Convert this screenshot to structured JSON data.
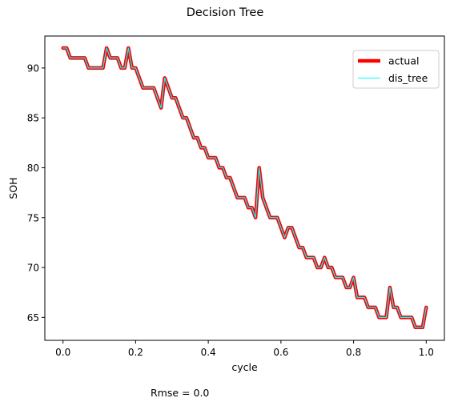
{
  "chart_data": {
    "type": "line",
    "title": "Decision Tree",
    "xlabel": "cycle",
    "ylabel": "SOH",
    "xlim": [
      -0.05,
      1.05
    ],
    "ylim": [
      62.7,
      93.2
    ],
    "xticks": [
      0.0,
      0.2,
      0.4,
      0.6,
      0.8,
      1.0
    ],
    "xtick_labels": [
      "0.0",
      "0.2",
      "0.4",
      "0.6",
      "0.8",
      "1.0"
    ],
    "yticks": [
      65,
      70,
      75,
      80,
      85,
      90
    ],
    "ytick_labels": [
      "65",
      "70",
      "75",
      "80",
      "85",
      "90"
    ],
    "legend": {
      "position": "top-right"
    },
    "grid": false,
    "series": [
      {
        "name": "actual",
        "color": "#ff0000",
        "x": [
          0.0,
          0.01,
          0.02,
          0.03,
          0.04,
          0.05,
          0.06,
          0.07,
          0.08,
          0.09,
          0.1,
          0.11,
          0.12,
          0.13,
          0.14,
          0.15,
          0.16,
          0.17,
          0.18,
          0.19,
          0.2,
          0.21,
          0.22,
          0.23,
          0.24,
          0.25,
          0.26,
          0.27,
          0.28,
          0.29,
          0.3,
          0.31,
          0.32,
          0.33,
          0.34,
          0.35,
          0.36,
          0.37,
          0.38,
          0.39,
          0.4,
          0.41,
          0.42,
          0.43,
          0.44,
          0.45,
          0.46,
          0.47,
          0.48,
          0.49,
          0.5,
          0.51,
          0.52,
          0.53,
          0.54,
          0.55,
          0.56,
          0.57,
          0.58,
          0.59,
          0.6,
          0.61,
          0.62,
          0.63,
          0.64,
          0.65,
          0.66,
          0.67,
          0.68,
          0.69,
          0.7,
          0.71,
          0.72,
          0.73,
          0.74,
          0.75,
          0.76,
          0.77,
          0.78,
          0.79,
          0.8,
          0.81,
          0.82,
          0.83,
          0.84,
          0.85,
          0.86,
          0.87,
          0.88,
          0.89,
          0.9,
          0.91,
          0.92,
          0.93,
          0.94,
          0.95,
          0.96,
          0.97,
          0.98,
          0.99,
          1.0
        ],
        "y": [
          92,
          92,
          91,
          91,
          91,
          91,
          91,
          90,
          90,
          90,
          90,
          90,
          92,
          91,
          91,
          91,
          90,
          90,
          92,
          90,
          90,
          89,
          88,
          88,
          88,
          88,
          87,
          86,
          89,
          88,
          87,
          87,
          86,
          85,
          85,
          84,
          83,
          83,
          82,
          82,
          81,
          81,
          81,
          80,
          80,
          79,
          79,
          78,
          77,
          77,
          77,
          76,
          76,
          75,
          80,
          77,
          76,
          75,
          75,
          75,
          74,
          73,
          74,
          74,
          73,
          72,
          72,
          71,
          71,
          71,
          70,
          70,
          71,
          70,
          70,
          69,
          69,
          69,
          68,
          68,
          69,
          67,
          67,
          67,
          66,
          66,
          66,
          65,
          65,
          65,
          68,
          66,
          66,
          65,
          65,
          65,
          65,
          64,
          64,
          64,
          66
        ]
      },
      {
        "name": "dis_tree",
        "color": "#00ffff",
        "x": [
          0.0,
          0.01,
          0.02,
          0.03,
          0.04,
          0.05,
          0.06,
          0.07,
          0.08,
          0.09,
          0.1,
          0.11,
          0.12,
          0.13,
          0.14,
          0.15,
          0.16,
          0.17,
          0.18,
          0.19,
          0.2,
          0.21,
          0.22,
          0.23,
          0.24,
          0.25,
          0.26,
          0.27,
          0.28,
          0.29,
          0.3,
          0.31,
          0.32,
          0.33,
          0.34,
          0.35,
          0.36,
          0.37,
          0.38,
          0.39,
          0.4,
          0.41,
          0.42,
          0.43,
          0.44,
          0.45,
          0.46,
          0.47,
          0.48,
          0.49,
          0.5,
          0.51,
          0.52,
          0.53,
          0.54,
          0.55,
          0.56,
          0.57,
          0.58,
          0.59,
          0.6,
          0.61,
          0.62,
          0.63,
          0.64,
          0.65,
          0.66,
          0.67,
          0.68,
          0.69,
          0.7,
          0.71,
          0.72,
          0.73,
          0.74,
          0.75,
          0.76,
          0.77,
          0.78,
          0.79,
          0.8,
          0.81,
          0.82,
          0.83,
          0.84,
          0.85,
          0.86,
          0.87,
          0.88,
          0.89,
          0.9,
          0.91,
          0.92,
          0.93,
          0.94,
          0.95,
          0.96,
          0.97,
          0.98,
          0.99,
          1.0
        ],
        "y": [
          92,
          92,
          91,
          91,
          91,
          91,
          91,
          90,
          90,
          90,
          90,
          90,
          92,
          91,
          91,
          91,
          90,
          90,
          92,
          90,
          90,
          89,
          88,
          88,
          88,
          88,
          87,
          86,
          89,
          88,
          87,
          87,
          86,
          85,
          85,
          84,
          83,
          83,
          82,
          82,
          81,
          81,
          81,
          80,
          80,
          79,
          79,
          78,
          77,
          77,
          77,
          76,
          76,
          75,
          80,
          77,
          76,
          75,
          75,
          75,
          74,
          73,
          74,
          74,
          73,
          72,
          72,
          71,
          71,
          71,
          70,
          70,
          71,
          70,
          70,
          69,
          69,
          69,
          68,
          68,
          69,
          67,
          67,
          67,
          66,
          66,
          66,
          65,
          65,
          65,
          68,
          66,
          66,
          65,
          65,
          65,
          65,
          64,
          64,
          64,
          66
        ]
      }
    ],
    "annotation": "Rmse = 0.0"
  }
}
